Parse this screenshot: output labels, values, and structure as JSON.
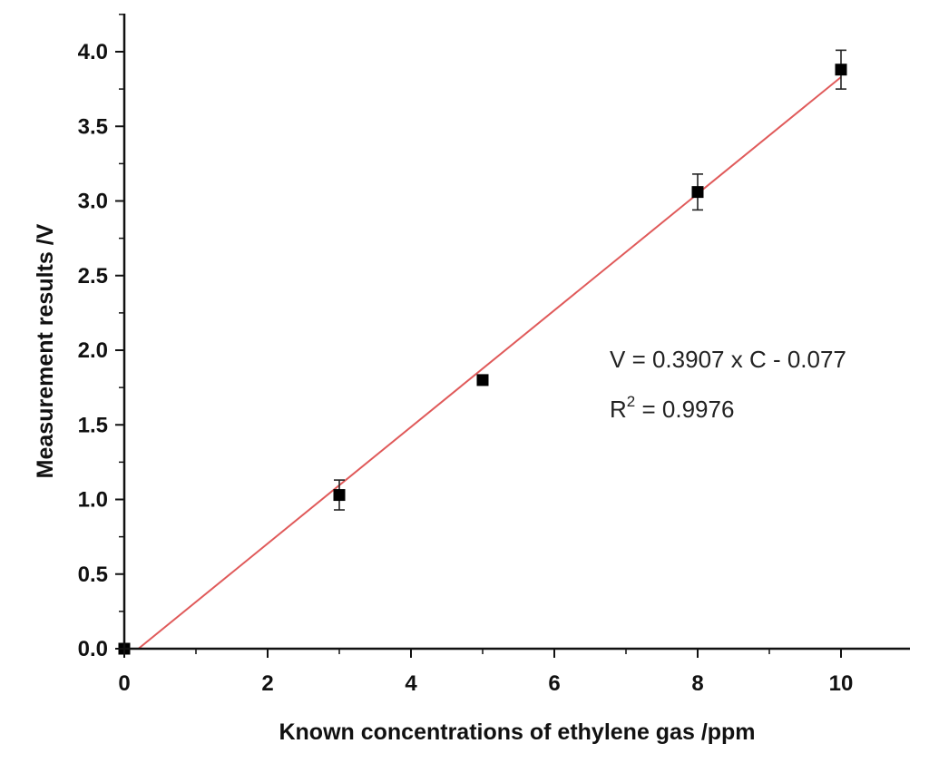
{
  "chart_data": {
    "type": "scatter",
    "xlabel": "Known concentrations of ethylene gas /ppm",
    "ylabel": "Measurement results /V",
    "xlim": [
      0,
      11
    ],
    "ylim": [
      0,
      4.3
    ],
    "x_ticks": [
      0,
      2,
      4,
      6,
      8,
      10
    ],
    "x_tick_labels": [
      "0",
      "2",
      "4",
      "6",
      "8",
      "10"
    ],
    "y_ticks": [
      0,
      0.5,
      1,
      1.5,
      2,
      2.5,
      3,
      3.5,
      4
    ],
    "y_tick_labels": [
      "0.0",
      "0.5",
      "1.0",
      "1.5",
      "2.0",
      "2.5",
      "3.0",
      "3.5",
      "4.0"
    ],
    "grid": false,
    "series": [
      {
        "marker": "square",
        "color": "#000000",
        "points": [
          {
            "x": 0,
            "y": 0.0,
            "err": 0.0
          },
          {
            "x": 3,
            "y": 1.03,
            "err": 0.1
          },
          {
            "x": 5,
            "y": 1.8,
            "err": 0.0
          },
          {
            "x": 8,
            "y": 3.06,
            "err": 0.12
          },
          {
            "x": 10,
            "y": 3.88,
            "err": 0.13
          }
        ]
      }
    ],
    "fit_line": {
      "color": "#e05a5a",
      "slope": 0.3907,
      "intercept": -0.077,
      "x_range": [
        0.197,
        10
      ]
    },
    "annotation": {
      "equation": "V =  0.3907 x C - 0.077",
      "r2_prefix": "R",
      "r2_sup": "2",
      "r2_rest": " = 0.9976"
    }
  }
}
